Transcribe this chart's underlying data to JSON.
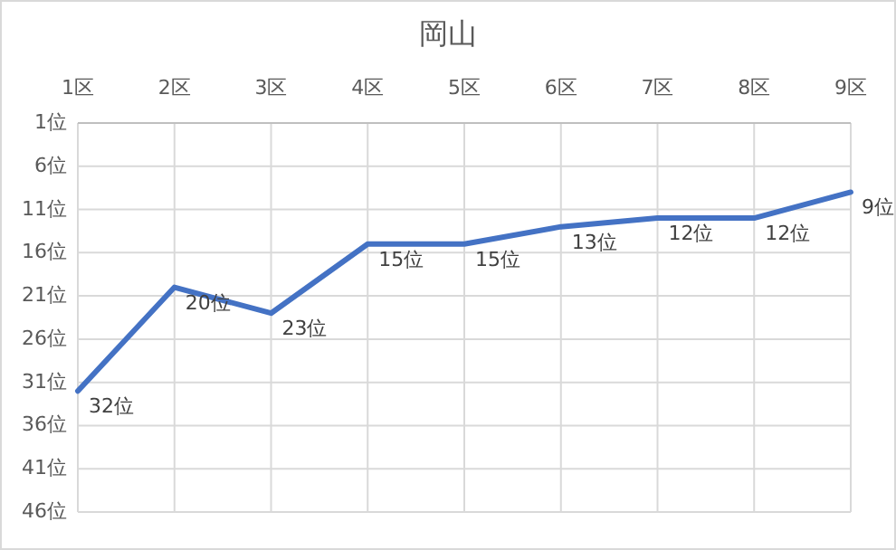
{
  "chart_data": {
    "type": "line",
    "title": "岡山",
    "categories": [
      "1区",
      "2区",
      "3区",
      "4区",
      "5区",
      "6区",
      "7区",
      "8区",
      "9区"
    ],
    "series": [
      {
        "color": "#4472c4",
        "values": [
          32,
          20,
          23,
          15,
          15,
          13,
          12,
          12,
          9
        ],
        "value_labels": [
          "32位",
          "20位",
          "23位",
          "15位",
          "15位",
          "13位",
          "12位",
          "12位",
          "9位"
        ]
      }
    ],
    "ylim": [
      46,
      1
    ],
    "yticks": [
      {
        "value": 1,
        "label": "1位"
      },
      {
        "value": 6,
        "label": "6位"
      },
      {
        "value": 11,
        "label": "11位"
      },
      {
        "value": 16,
        "label": "16位"
      },
      {
        "value": 21,
        "label": "21位"
      },
      {
        "value": 26,
        "label": "26位"
      },
      {
        "value": 31,
        "label": "31位"
      },
      {
        "value": 36,
        "label": "36位"
      },
      {
        "value": 41,
        "label": "41位"
      },
      {
        "value": 46,
        "label": "46位"
      }
    ],
    "grid": true,
    "marker": "none",
    "line_style": "solid"
  }
}
